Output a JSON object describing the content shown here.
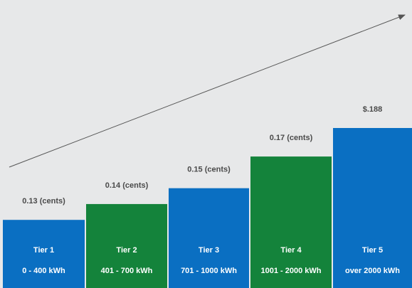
{
  "colors": {
    "background": "#e7e8e9",
    "blue": "#0a6fc2",
    "green": "#14833b",
    "arrow": "#555555"
  },
  "chart_data": {
    "type": "bar",
    "categories": [
      "Tier 1",
      "Tier 2",
      "Tier 3",
      "Tier 4",
      "Tier 5"
    ],
    "ranges": [
      "0 - 400 kWh",
      "401 - 700 kWh",
      "701 - 1000 kWh",
      "1001 - 2000 kWh",
      "over 2000 kWh"
    ],
    "values": [
      0.13,
      0.14,
      0.15,
      0.17,
      0.188
    ],
    "value_labels": [
      "0.13 (cents)",
      "0.14 (cents)",
      "0.15 (cents)",
      "0.17 (cents)",
      "$.188"
    ],
    "bar_colors": [
      "blue",
      "green",
      "blue",
      "green",
      "blue"
    ],
    "ylim": [
      0.087,
      0.188
    ],
    "title": "",
    "xlabel": "",
    "ylabel": "",
    "trend_arrow": true,
    "grid": false
  }
}
